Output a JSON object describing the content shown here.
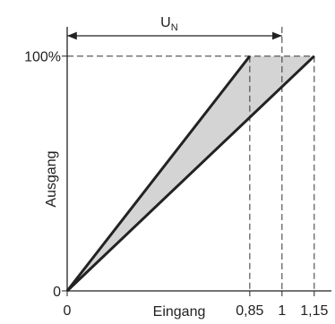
{
  "chart_data": {
    "type": "line",
    "x_label": "Eingang",
    "y_label": "Ausgang",
    "dimension_label": "U",
    "dimension_subscript": "N",
    "series": [
      {
        "x": [
          0,
          0.85
        ],
        "values": [
          0,
          100
        ],
        "color": "#222222"
      },
      {
        "x": [
          0,
          1.15
        ],
        "values": [
          0,
          100
        ],
        "color": "#222222"
      }
    ],
    "band_color": "#d4d4d4",
    "xlim": [
      0,
      1.23
    ],
    "ylim": [
      0,
      114
    ],
    "xticks": [
      0,
      {
        "value": 0.85,
        "label": "0,85"
      },
      1,
      {
        "value": 1.15,
        "label": "1,15"
      }
    ],
    "yticks": [
      0,
      {
        "value": 100,
        "label": "100%"
      }
    ]
  }
}
